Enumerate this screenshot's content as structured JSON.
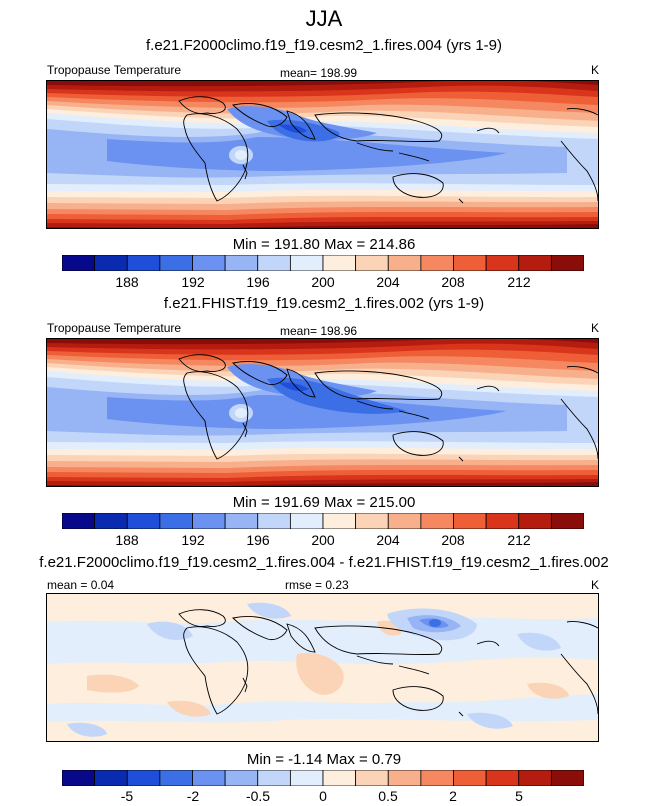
{
  "page": {
    "title": "JJA"
  },
  "colors": {
    "scale": [
      "#08088a",
      "#0a2bb0",
      "#1f4fd8",
      "#3c6fe6",
      "#6b92f0",
      "#97b5f5",
      "#c2d6fa",
      "#e3eefc",
      "#fdeedd",
      "#fbd3b6",
      "#f8b08c",
      "#f58860",
      "#ef5f37",
      "#d8351c",
      "#b51c10",
      "#8a0d0a"
    ]
  },
  "panels": [
    {
      "title": "f.e21.F2000climo.f19_f19.cesm2_1.fires.004 (yrs 1-9)",
      "left_label": "Tropopause Temperature",
      "stat_label": "mean= 198.99",
      "units": "K",
      "min_max": "Min = 191.80 Max = 214.86",
      "colorbar_labels": [
        "188",
        "192",
        "196",
        "200",
        "204",
        "208",
        "212"
      ]
    },
    {
      "title": "f.e21.FHIST.f19_f19.cesm2_1.fires.002 (yrs 1-9)",
      "left_label": "Tropopause Temperature",
      "stat_label": "mean= 198.96",
      "units": "K",
      "min_max": "Min = 191.69 Max = 215.00",
      "colorbar_labels": [
        "188",
        "192",
        "196",
        "200",
        "204",
        "208",
        "212"
      ]
    },
    {
      "title": "f.e21.F2000climo.f19_f19.cesm2_1.fires.004 - f.e21.FHIST.f19_f19.cesm2_1.fires.002",
      "left_label": "mean =   0.04",
      "stat_label": "rmse =   0.23",
      "units": "K",
      "min_max": "Min =  -1.14 Max =   0.79",
      "colorbar_labels": [
        "-5",
        "-2",
        "-0.5",
        "0",
        "0.5",
        "2",
        "5"
      ]
    }
  ],
  "chart_data": [
    {
      "type": "heatmap",
      "title": "f.e21.F2000climo.f19_f19.cesm2_1.fires.004 (yrs 1-9)",
      "variable": "Tropopause Temperature",
      "units": "K",
      "mean": 198.99,
      "min": 191.8,
      "max": 214.86,
      "colorbar_ticks": [
        188,
        192,
        196,
        200,
        204,
        208,
        212
      ]
    },
    {
      "type": "heatmap",
      "title": "f.e21.FHIST.f19_f19.cesm2_1.fires.002 (yrs 1-9)",
      "variable": "Tropopause Temperature",
      "units": "K",
      "mean": 198.96,
      "min": 191.69,
      "max": 215.0,
      "colorbar_ticks": [
        188,
        192,
        196,
        200,
        204,
        208,
        212
      ]
    },
    {
      "type": "heatmap",
      "title": "f.e21.F2000climo.f19_f19.cesm2_1.fires.004 - f.e21.FHIST.f19_f19.cesm2_1.fires.002",
      "units": "K",
      "mean": 0.04,
      "rmse": 0.23,
      "min": -1.14,
      "max": 0.79,
      "colorbar_ticks": [
        -5,
        -2,
        -0.5,
        0,
        0.5,
        2,
        5
      ]
    }
  ]
}
